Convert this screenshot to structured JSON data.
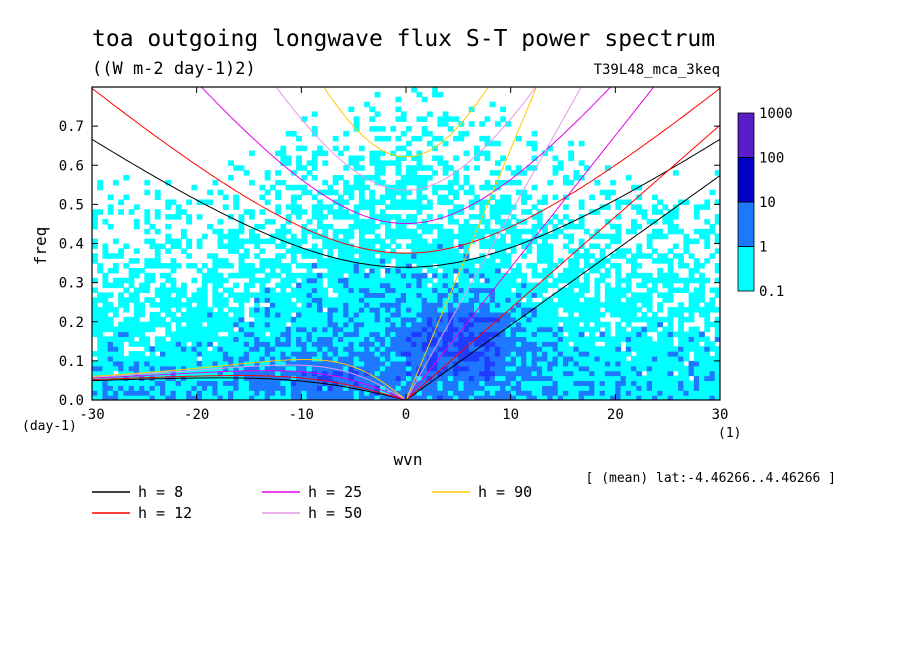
{
  "chart_data": {
    "type": "heatmap",
    "title": "toa outgoing longwave flux S-T power spectrum",
    "subtitle": "((W m-2 day-1)2)",
    "run_label": "T39L48_mca_3keq",
    "xlabel": "wvn",
    "xunit": "(1)",
    "ylabel": "freq",
    "yunit": "(day-1)",
    "xlim": [
      -30,
      30
    ],
    "ylim": [
      0,
      0.8
    ],
    "x_ticks": [
      -30,
      -20,
      -10,
      0,
      10,
      20,
      30
    ],
    "x_tick_labels": [
      "-30",
      "-20",
      "-10",
      "0",
      "10",
      "20",
      "30"
    ],
    "y_ticks": [
      0,
      0.1,
      0.2,
      0.3,
      0.4,
      0.5,
      0.6,
      0.7
    ],
    "y_tick_labels": [
      "0.0",
      "0.1",
      "0.2",
      "0.3",
      "0.4",
      "0.5",
      "0.6",
      "0.7"
    ],
    "colorbar": {
      "levels": [
        0.1,
        1,
        10,
        100,
        1000
      ],
      "level_labels": [
        "0.1",
        "1",
        "10",
        "100",
        "1000"
      ],
      "colors": [
        "#00ffff",
        "#1e78ff",
        "#1e3cff",
        "#0000c8",
        "#5a1ec8"
      ]
    },
    "note": "[ (mean) lat:-4.46266..4.46266 ]",
    "dispersion_curves": [
      {
        "name": "h = 8",
        "h": 8,
        "color": "#000000"
      },
      {
        "name": "h = 12",
        "h": 12,
        "color": "#ff0000"
      },
      {
        "name": "h = 25",
        "h": 25,
        "color": "#e600e6"
      },
      {
        "name": "h = 50",
        "h": 50,
        "color": "#e696e6"
      },
      {
        "name": "h = 90",
        "h": 90,
        "color": "#ffc800"
      }
    ]
  }
}
